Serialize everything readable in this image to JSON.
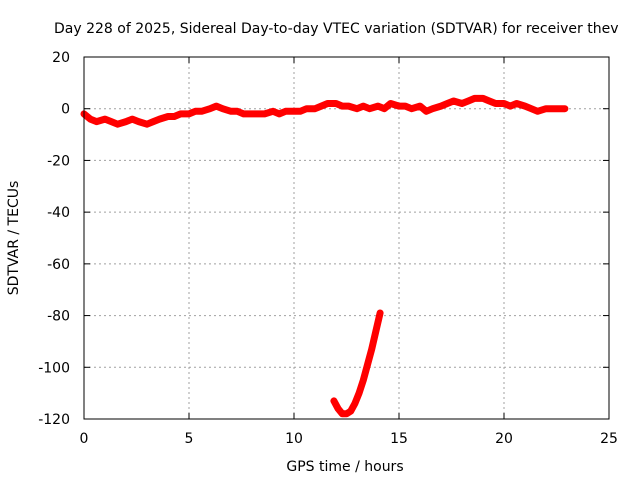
{
  "chart_data": {
    "type": "scatter",
    "title": "Day 228 of 2025, Sidereal Day-to-day VTEC variation (SDTVAR) for receiver thev",
    "xlabel": "GPS time / hours",
    "ylabel": "SDTVAR / TECUs",
    "xlim": [
      0,
      25
    ],
    "ylim": [
      -120,
      20
    ],
    "xticks": [
      0,
      5,
      10,
      15,
      20,
      25
    ],
    "yticks": [
      -120,
      -100,
      -80,
      -60,
      -40,
      -20,
      0,
      20
    ],
    "grid": true,
    "legend": "none",
    "series": [
      {
        "color": "#ff0000",
        "x": [
          0.0,
          0.3,
          0.6,
          1.0,
          1.3,
          1.6,
          2.0,
          2.3,
          2.6,
          3.0,
          3.3,
          3.6,
          4.0,
          4.3,
          4.6,
          5.0,
          5.3,
          5.6,
          6.0,
          6.3,
          6.6,
          7.0,
          7.3,
          7.6,
          8.0,
          8.3,
          8.6,
          9.0,
          9.3,
          9.6,
          10.0,
          10.3,
          10.6,
          11.0,
          11.3,
          11.6,
          12.0,
          12.3,
          12.6,
          13.0,
          13.3,
          13.6,
          14.0,
          14.3,
          14.6,
          15.0,
          15.3,
          15.6,
          16.0,
          16.3,
          16.6,
          17.0,
          17.3,
          17.6,
          18.0,
          18.3,
          18.6,
          19.0,
          19.3,
          19.6,
          20.0,
          20.3,
          20.6,
          21.0,
          21.3,
          21.6,
          22.0,
          22.3,
          22.6,
          22.9
        ],
        "y": [
          -2,
          -4,
          -5,
          -4,
          -5,
          -6,
          -5,
          -4,
          -5,
          -6,
          -5,
          -4,
          -3,
          -3,
          -2,
          -2,
          -1,
          -1,
          0,
          1,
          0,
          -1,
          -1,
          -2,
          -2,
          -2,
          -2,
          -1,
          -2,
          -1,
          -1,
          -1,
          0,
          0,
          1,
          2,
          2,
          1,
          1,
          0,
          1,
          0,
          1,
          0,
          2,
          1,
          1,
          0,
          1,
          -1,
          0,
          1,
          2,
          3,
          2,
          3,
          4,
          4,
          3,
          2,
          2,
          1,
          2,
          1,
          0,
          -1,
          0,
          0,
          0,
          0
        ]
      },
      {
        "color": "#ff0000",
        "x": [
          11.9,
          12.1,
          12.3,
          12.5,
          12.7,
          12.9,
          13.1,
          13.3,
          13.5,
          13.7,
          13.9,
          14.1
        ],
        "y": [
          -113,
          -116,
          -118,
          -118,
          -117,
          -114,
          -110,
          -105,
          -99,
          -93,
          -86,
          -79
        ]
      }
    ]
  }
}
